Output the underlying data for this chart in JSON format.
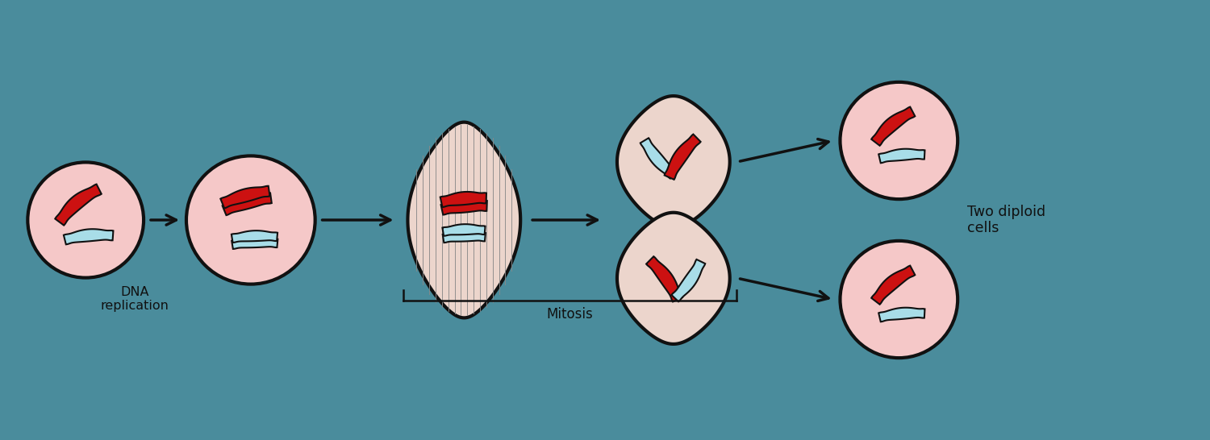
{
  "bg_color": "#4a8c9c",
  "cell_fill": "#f5c8c8",
  "cell_edge": "#111111",
  "red_chrom": "#cc1111",
  "blue_chrom": "#a8dde8",
  "chrom_edge": "#111111",
  "spindle_fill": "#ecd5cc",
  "arrow_color": "#111111",
  "text_color": "#111111",
  "fiber_color": "#888888",
  "label1": "DNA\nreplication",
  "label2": "Mitosis",
  "label3": "Two diploid\ncells",
  "figsize": [
    15.0,
    5.46
  ],
  "dpi": 100
}
